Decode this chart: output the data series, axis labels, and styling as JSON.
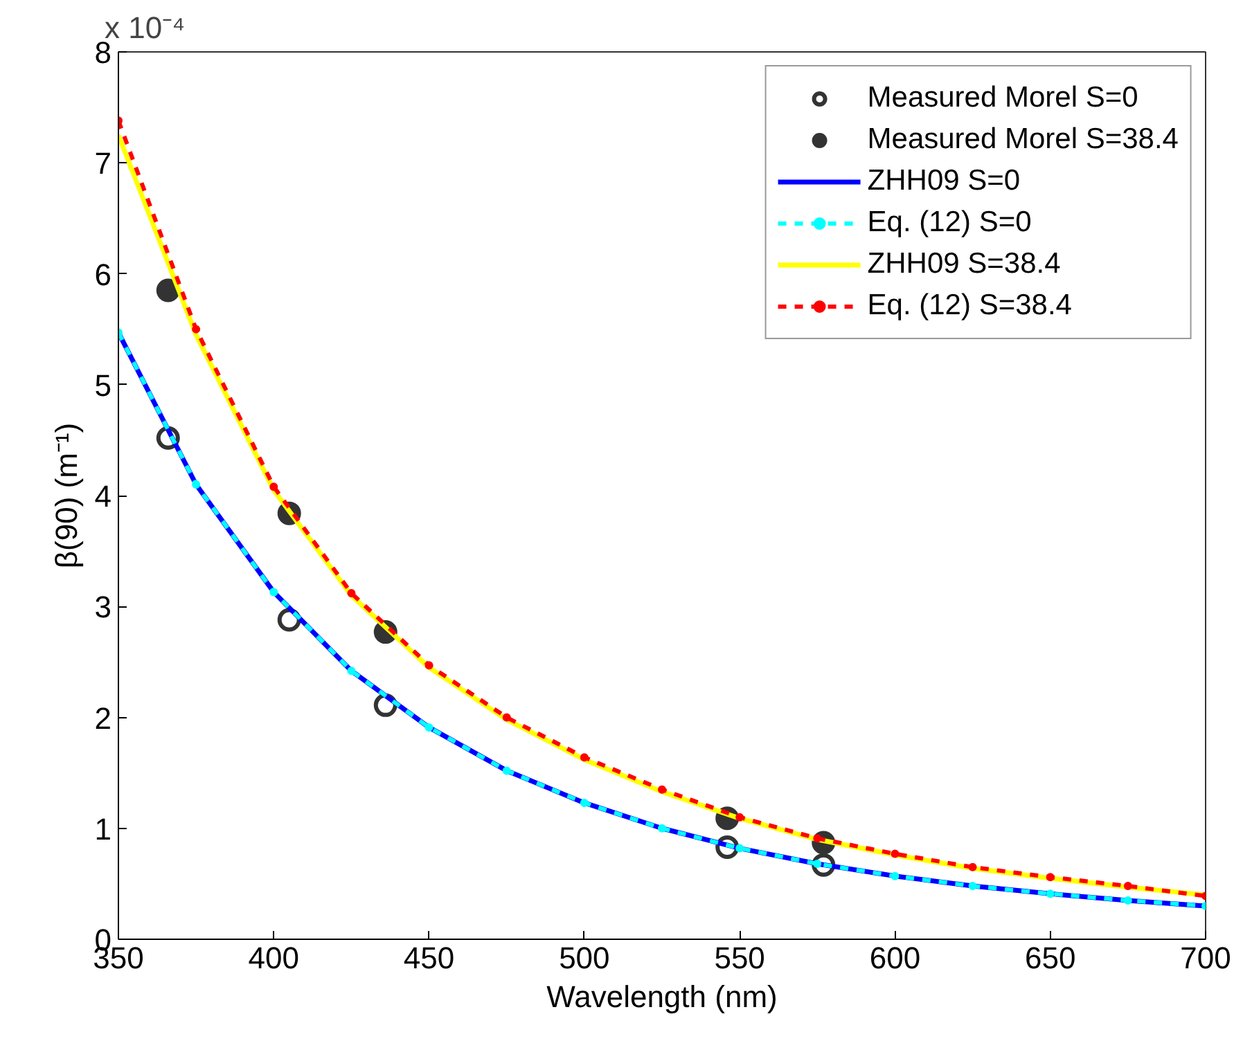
{
  "chart_data": {
    "type": "line",
    "xlabel": "Wavelength (nm)",
    "ylabel": "β(90) (m⁻¹)",
    "annotations": [
      "x 10⁻⁴"
    ],
    "xlim": [
      350,
      700
    ],
    "xticks": [
      350,
      400,
      450,
      500,
      550,
      600,
      650,
      700
    ],
    "ylim": [
      0,
      8
    ],
    "yticks": [
      0,
      1,
      2,
      3,
      4,
      5,
      6,
      7,
      8
    ],
    "grid": false,
    "legend": "top right",
    "series": [
      {
        "name": "Measured Morel S=0",
        "type": "scatter",
        "marker": "circle_open",
        "color": "#333333",
        "x": [
          366,
          405,
          436,
          546,
          577
        ],
        "values": [
          4.52,
          2.88,
          2.11,
          0.83,
          0.67
        ]
      },
      {
        "name": "Measured Morel S=38.4",
        "type": "scatter",
        "marker": "circle",
        "color": "#333333",
        "x": [
          366,
          405,
          436,
          546,
          577
        ],
        "values": [
          5.85,
          3.84,
          2.77,
          1.09,
          0.87
        ]
      },
      {
        "name": "ZHH09 S=0",
        "line_style": "solid",
        "marker": "none",
        "color": "#0000ff",
        "x": [
          350,
          375,
          400,
          425,
          450,
          475,
          500,
          525,
          550,
          575,
          600,
          625,
          650,
          675,
          700
        ],
        "values": [
          5.47,
          4.1,
          3.13,
          2.42,
          1.91,
          1.52,
          1.23,
          1.0,
          0.82,
          0.68,
          0.57,
          0.48,
          0.41,
          0.35,
          0.3
        ]
      },
      {
        "name": "Eq. (12) S=0",
        "line_style": "dashed",
        "marker": "circle",
        "color": "#00ffff",
        "x": [
          350,
          375,
          400,
          425,
          450,
          475,
          500,
          525,
          550,
          575,
          600,
          625,
          650,
          675,
          700
        ],
        "values": [
          5.47,
          4.1,
          3.13,
          2.42,
          1.91,
          1.52,
          1.23,
          1.0,
          0.82,
          0.68,
          0.57,
          0.48,
          0.41,
          0.35,
          0.3
        ]
      },
      {
        "name": "ZHH09 S=38.4",
        "line_style": "solid",
        "marker": "none",
        "color": "#ffff00",
        "x": [
          350,
          375,
          400,
          425,
          450,
          475,
          500,
          525,
          550,
          575,
          600,
          625,
          650,
          675,
          700
        ],
        "values": [
          7.25,
          5.45,
          4.05,
          3.1,
          2.45,
          1.98,
          1.62,
          1.33,
          1.09,
          0.9,
          0.76,
          0.64,
          0.55,
          0.47,
          0.4
        ]
      },
      {
        "name": "Eq. (12) S=38.4",
        "line_style": "dashed",
        "marker": "circle",
        "color": "#ff0000",
        "x": [
          350,
          375,
          400,
          425,
          450,
          475,
          500,
          525,
          550,
          575,
          600,
          625,
          650,
          675,
          700
        ],
        "values": [
          7.38,
          5.5,
          4.08,
          3.12,
          2.47,
          2.0,
          1.64,
          1.35,
          1.1,
          0.91,
          0.77,
          0.65,
          0.56,
          0.48,
          0.39
        ]
      }
    ]
  }
}
